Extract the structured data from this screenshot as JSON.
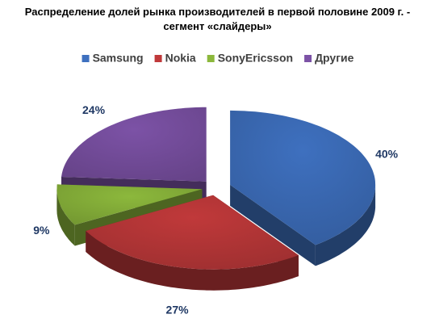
{
  "chart_data": {
    "type": "pie",
    "title": "Распределение долей рынка производителей в первой половине 2009 г. - сегмент «слайдеры»",
    "categories": [
      "Samsung",
      "Nokia",
      "SonyEricsson",
      "Другие"
    ],
    "values": [
      40,
      27,
      9,
      24
    ],
    "value_labels": [
      "40%",
      "27%",
      "9%",
      "24%"
    ],
    "colors": [
      "#3e70bf",
      "#c0393a",
      "#8cb83c",
      "#7c52a6"
    ],
    "legend": "top"
  }
}
